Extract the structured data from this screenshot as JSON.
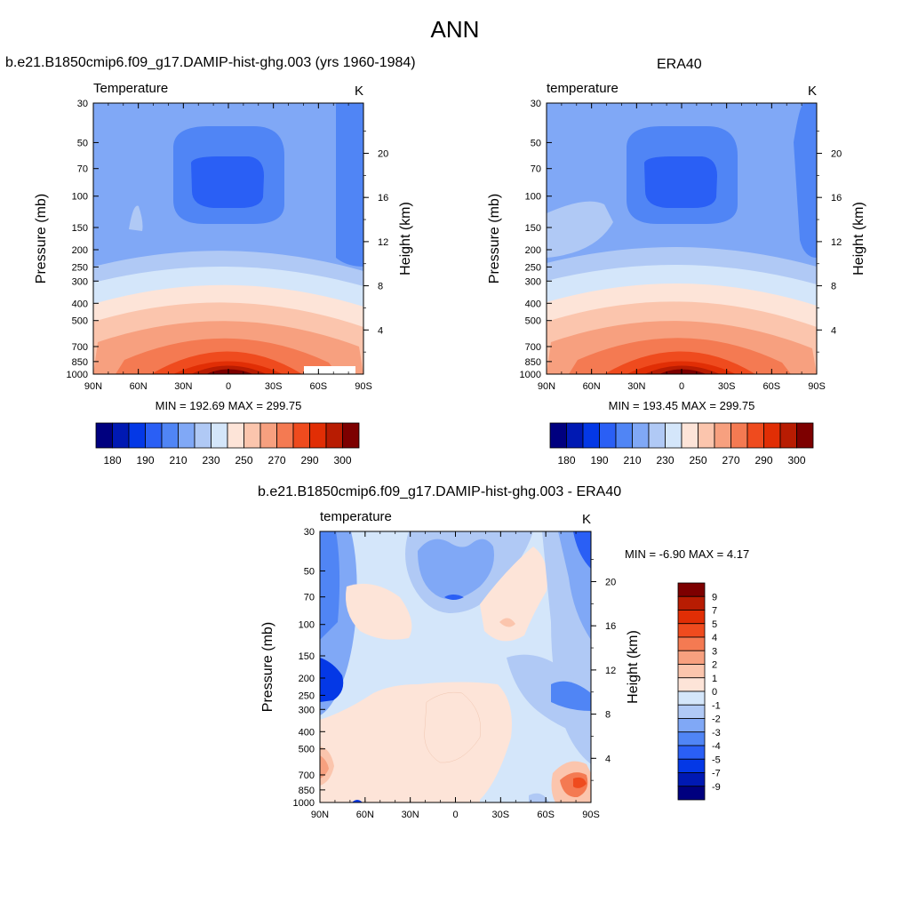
{
  "main_title": "ANN",
  "chart_data": [
    {
      "id": "model",
      "type": "heatmap",
      "title": "b.e21.B1850cmip6.f09_g17.DAMIP-hist-ghg.003 (yrs 1960-1984)",
      "subtitle_left": "Temperature",
      "subtitle_right": "K",
      "ylabel": "Pressure (mb)",
      "ylabel_right": "Height (km)",
      "xlabel": "",
      "x_ticks": [
        "90N",
        "60N",
        "30N",
        "0",
        "30S",
        "60S",
        "90S"
      ],
      "y_ticks": [
        "30",
        "50",
        "70",
        "100",
        "150",
        "200",
        "250",
        "300",
        "400",
        "500",
        "700",
        "850",
        "1000"
      ],
      "height_ticks": [
        "20",
        "16",
        "12",
        "8",
        "4"
      ],
      "stats": "MIN = 192.69  MAX = 299.75",
      "min": 192.69,
      "max": 299.75,
      "colorbar_labels": [
        "180",
        "190",
        "210",
        "230",
        "250",
        "270",
        "290",
        "300"
      ]
    },
    {
      "id": "obs",
      "type": "heatmap",
      "title": "ERA40",
      "subtitle_left": "temperature",
      "subtitle_right": "K",
      "ylabel": "Pressure (mb)",
      "ylabel_right": "Height (km)",
      "xlabel": "",
      "x_ticks": [
        "90N",
        "60N",
        "30N",
        "0",
        "30S",
        "60S",
        "90S"
      ],
      "y_ticks": [
        "30",
        "50",
        "70",
        "100",
        "150",
        "200",
        "250",
        "300",
        "400",
        "500",
        "700",
        "850",
        "1000"
      ],
      "height_ticks": [
        "20",
        "16",
        "12",
        "8",
        "4"
      ],
      "stats": "MIN = 193.45  MAX = 299.75",
      "min": 193.45,
      "max": 299.75,
      "colorbar_labels": [
        "180",
        "190",
        "210",
        "230",
        "250",
        "270",
        "290",
        "300"
      ]
    },
    {
      "id": "diff",
      "type": "heatmap",
      "title": "b.e21.B1850cmip6.f09_g17.DAMIP-hist-ghg.003 - ERA40",
      "subtitle_left": "temperature",
      "subtitle_right": "K",
      "ylabel": "Pressure (mb)",
      "ylabel_right": "Height (km)",
      "xlabel": "",
      "x_ticks": [
        "90N",
        "60N",
        "30N",
        "0",
        "30S",
        "60S",
        "90S"
      ],
      "y_ticks": [
        "30",
        "50",
        "70",
        "100",
        "150",
        "200",
        "250",
        "300",
        "400",
        "500",
        "700",
        "850",
        "1000"
      ],
      "height_ticks": [
        "20",
        "16",
        "12",
        "8",
        "4"
      ],
      "stats": "MIN =  -6.90  MAX =   4.17",
      "min": -6.9,
      "max": 4.17,
      "colorbar_labels": [
        "9",
        "7",
        "5",
        "4",
        "3",
        "2",
        "1",
        "0",
        "-1",
        "-2",
        "-3",
        "-4",
        "-5",
        "-7",
        "-9"
      ]
    }
  ],
  "palette": [
    "#00007f",
    "#0019b3",
    "#0438e6",
    "#2a5ff5",
    "#5085f5",
    "#80a8f6",
    "#b0c9f5",
    "#d4e6fa",
    "#fde4d8",
    "#fbc5ad",
    "#f7a07f",
    "#f47a52",
    "#ef4b1e",
    "#e12e05",
    "#b81c02",
    "#7d0000"
  ]
}
